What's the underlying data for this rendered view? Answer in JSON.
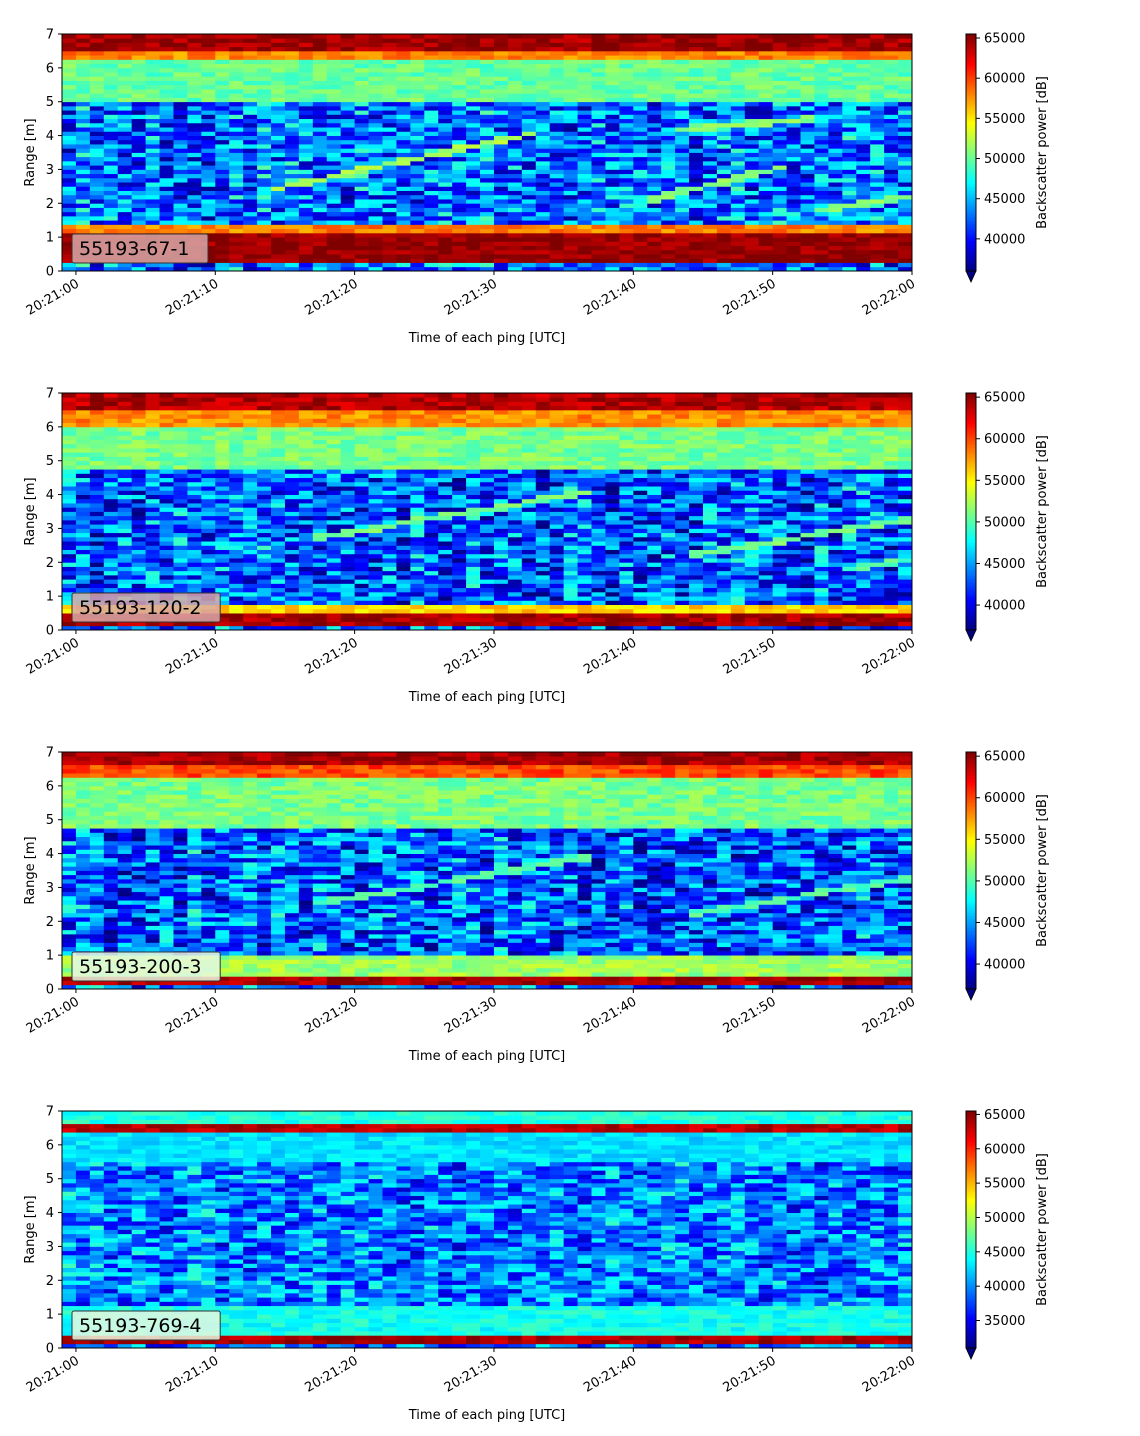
{
  "chart_data": [
    {
      "type": "heatmap",
      "instrument_label": "55193-67-1",
      "xlabel": "Time of each ping [UTC]",
      "ylabel": "Range [m]",
      "colorbar_label": "Backscatter power [dB]",
      "colormap": "jet",
      "xlim": [
        "20:20:59",
        "20:22:00"
      ],
      "x_ticks": [
        "20:21:00",
        "20:21:10",
        "20:21:20",
        "20:21:30",
        "20:21:40",
        "20:21:50",
        "20:22:00"
      ],
      "ylim": [
        0,
        7
      ],
      "y_ticks": [
        0,
        1,
        2,
        3,
        4,
        5,
        6,
        7
      ],
      "clim": [
        36000,
        65500
      ],
      "colorbar_ticks": [
        40000,
        45000,
        50000,
        55000,
        60000,
        65000
      ],
      "colorbar_extend": "min",
      "label_box_color": "#d9a8a8",
      "profile": {
        "background": 43000,
        "noise": 5500,
        "bands": [
          {
            "y": [
              0.2,
              1.15
            ],
            "value": 65000
          },
          {
            "y": [
              1.15,
              1.35
            ],
            "value": 58000
          },
          {
            "y": [
              5.0,
              6.2
            ],
            "value": 50000
          },
          {
            "y": [
              6.2,
              6.5
            ],
            "value": 58000
          },
          {
            "y": [
              6.5,
              7.0
            ],
            "value": 64500
          }
        ],
        "traces": [
          {
            "t": [
              14,
              33
            ],
            "y": [
              2.4,
              4.1
            ],
            "value": 52000
          },
          {
            "t": [
              43,
              53
            ],
            "y": [
              4.2,
              4.5
            ],
            "value": 51000
          },
          {
            "t": [
              41,
              51
            ],
            "y": [
              2.1,
              3.1
            ],
            "value": 51000
          },
          {
            "t": [
              53,
              60
            ],
            "y": [
              1.8,
              2.2
            ],
            "value": 51000
          }
        ]
      }
    },
    {
      "type": "heatmap",
      "instrument_label": "55193-120-2",
      "xlabel": "Time of each ping [UTC]",
      "ylabel": "Range [m]",
      "colorbar_label": "Backscatter power [dB]",
      "colormap": "jet",
      "xlim": [
        "20:20:59",
        "20:22:00"
      ],
      "x_ticks": [
        "20:21:00",
        "20:21:10",
        "20:21:20",
        "20:21:30",
        "20:21:40",
        "20:21:50",
        "20:22:00"
      ],
      "ylim": [
        0,
        7
      ],
      "y_ticks": [
        0,
        1,
        2,
        3,
        4,
        5,
        6,
        7
      ],
      "clim": [
        37000,
        65500
      ],
      "colorbar_ticks": [
        40000,
        45000,
        50000,
        55000,
        60000,
        65000
      ],
      "colorbar_extend": "min",
      "label_box_color": "#d9a8a8",
      "profile": {
        "background": 43000,
        "noise": 5500,
        "bands": [
          {
            "y": [
              0.1,
              0.55
            ],
            "value": 64500
          },
          {
            "y": [
              0.55,
              0.8
            ],
            "value": 56000
          },
          {
            "y": [
              4.8,
              6.0
            ],
            "value": 51000
          },
          {
            "y": [
              6.0,
              6.5
            ],
            "value": 58000
          },
          {
            "y": [
              6.5,
              7.0
            ],
            "value": 64000
          }
        ],
        "traces": [
          {
            "t": [
              17,
              37
            ],
            "y": [
              2.7,
              4.1
            ],
            "value": 51000
          },
          {
            "t": [
              44,
              60
            ],
            "y": [
              2.2,
              3.3
            ],
            "value": 51000
          },
          {
            "t": [
              55,
              60
            ],
            "y": [
              1.8,
              2.1
            ],
            "value": 50000
          }
        ]
      }
    },
    {
      "type": "heatmap",
      "instrument_label": "55193-200-3",
      "xlabel": "Time of each ping [UTC]",
      "ylabel": "Range [m]",
      "colorbar_label": "Backscatter power [dB]",
      "colormap": "jet",
      "xlim": [
        "20:20:59",
        "20:22:00"
      ],
      "x_ticks": [
        "20:21:00",
        "20:21:10",
        "20:21:20",
        "20:21:30",
        "20:21:40",
        "20:21:50",
        "20:22:00"
      ],
      "ylim": [
        0,
        7
      ],
      "y_ticks": [
        0,
        1,
        2,
        3,
        4,
        5,
        6,
        7
      ],
      "clim": [
        37000,
        65500
      ],
      "colorbar_ticks": [
        40000,
        45000,
        50000,
        55000,
        60000,
        65000
      ],
      "colorbar_extend": "min",
      "label_box_color": "#e8f8e0",
      "profile": {
        "background": 43000,
        "noise": 5500,
        "bands": [
          {
            "y": [
              0.15,
              0.4
            ],
            "value": 64500
          },
          {
            "y": [
              0.4,
              1.0
            ],
            "value": 52000
          },
          {
            "y": [
              4.8,
              6.2
            ],
            "value": 51000
          },
          {
            "y": [
              6.2,
              6.6
            ],
            "value": 60000
          },
          {
            "y": [
              6.6,
              7.0
            ],
            "value": 64500
          }
        ],
        "traces": [
          {
            "t": [
              17,
              37
            ],
            "y": [
              2.5,
              3.9
            ],
            "value": 50000
          },
          {
            "t": [
              44,
              60
            ],
            "y": [
              2.2,
              3.3
            ],
            "value": 50000
          }
        ]
      }
    },
    {
      "type": "heatmap",
      "instrument_label": "55193-769-4",
      "xlabel": "Time of each ping [UTC]",
      "ylabel": "Range [m]",
      "colorbar_label": "Backscatter power [dB]",
      "colormap": "jet",
      "xlim": [
        "20:20:59",
        "20:22:00"
      ],
      "x_ticks": [
        "20:21:00",
        "20:21:10",
        "20:21:20",
        "20:21:30",
        "20:21:40",
        "20:21:50",
        "20:22:00"
      ],
      "ylim": [
        0,
        7
      ],
      "y_ticks": [
        0,
        1,
        2,
        3,
        4,
        5,
        6,
        7
      ],
      "clim": [
        31000,
        65500
      ],
      "colorbar_ticks": [
        35000,
        40000,
        45000,
        50000,
        55000,
        60000,
        65000
      ],
      "colorbar_extend": "min",
      "label_box_color": "#e8f8e0",
      "profile": {
        "background": 39500,
        "noise": 5500,
        "bands": [
          {
            "y": [
              0.15,
              0.35
            ],
            "value": 64000
          },
          {
            "y": [
              0.35,
              1.3
            ],
            "value": 44500
          },
          {
            "y": [
              5.5,
              6.4
            ],
            "value": 43000
          },
          {
            "y": [
              6.4,
              6.6
            ],
            "value": 63500
          },
          {
            "y": [
              6.6,
              7.0
            ],
            "value": 45000
          }
        ],
        "traces": []
      }
    }
  ]
}
